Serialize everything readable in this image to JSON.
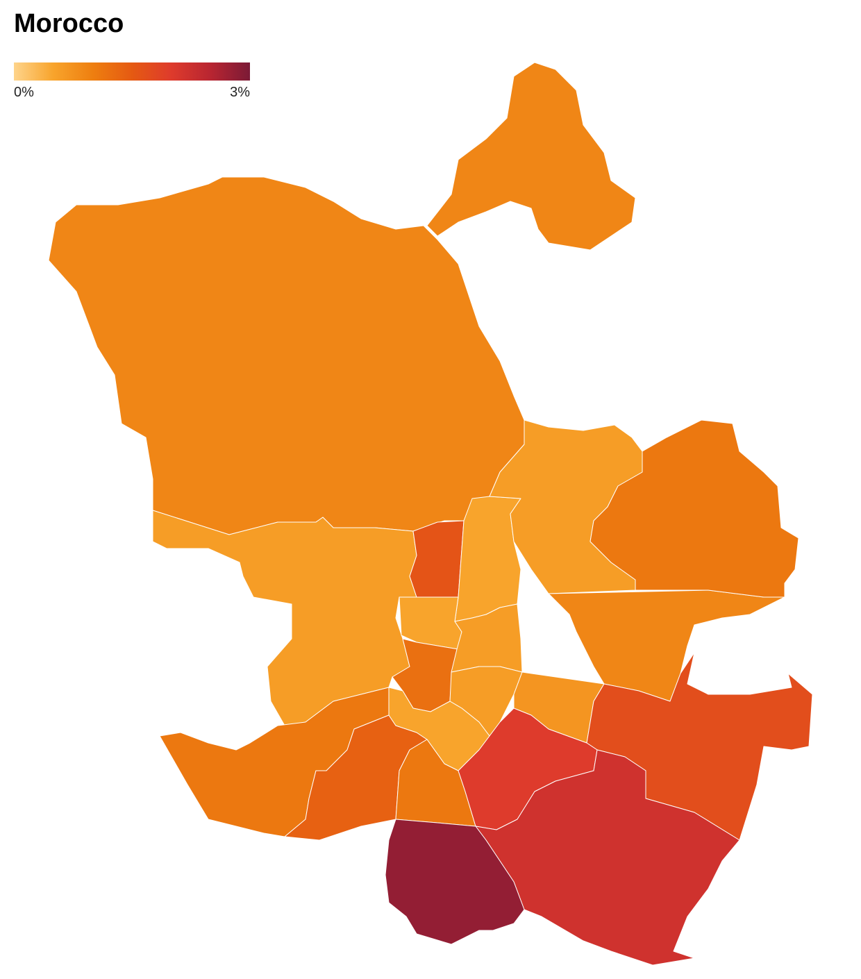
{
  "chart_data": {
    "type": "choropleth",
    "title": "Morocco",
    "colors": [
      "#fed48b",
      "#f8a42c",
      "#ee7f10",
      "#e55a12",
      "#de3b2c",
      "#b82531",
      "#7b1a36"
    ],
    "colorlim": [
      0,
      3
    ],
    "colorticks": [
      {
        "value": 0,
        "label": "0%"
      },
      {
        "value": 3,
        "label": "3%"
      }
    ],
    "values": [
      0.9,
      0.9,
      0.6,
      1.6,
      0.5,
      0.6,
      0.9,
      1.1,
      0.5,
      1.2,
      0.6,
      0.6,
      0.7,
      1.7,
      1.1,
      1.4,
      0.5,
      1.1,
      2.0,
      2.2,
      2.8
    ]
  }
}
